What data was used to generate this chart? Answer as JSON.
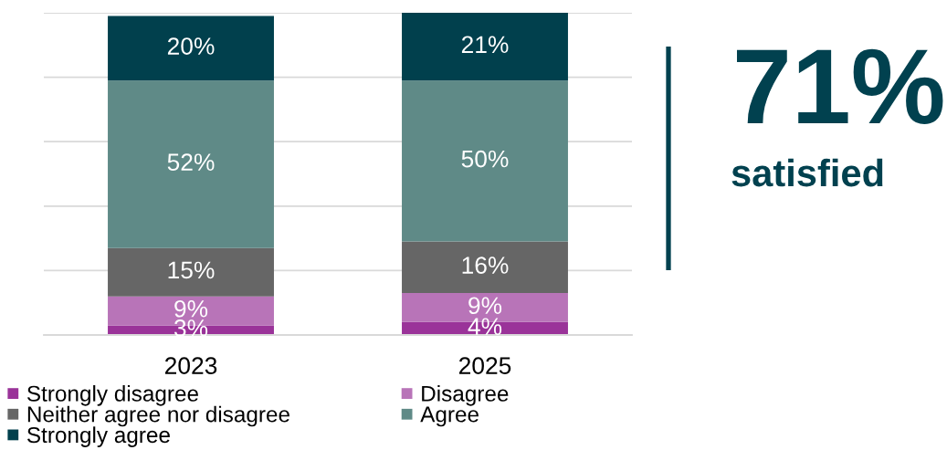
{
  "chart_data": {
    "type": "bar",
    "stacked": true,
    "categories": [
      "2023",
      "2025"
    ],
    "series": [
      {
        "name": "Strongly disagree",
        "color": "#9a3399",
        "values": [
          3,
          4
        ],
        "value_labels": [
          "3%",
          "4%"
        ]
      },
      {
        "name": "Disagree",
        "color": "#b874b8",
        "values": [
          9,
          9
        ],
        "value_labels": [
          "9%",
          "9%"
        ]
      },
      {
        "name": "Neither agree nor disagree",
        "color": "#666666",
        "values": [
          15,
          16
        ],
        "value_labels": [
          "15%",
          "16%"
        ]
      },
      {
        "name": "Agree",
        "color": "#5f8a87",
        "values": [
          52,
          50
        ],
        "value_labels": [
          "52%",
          "50%"
        ]
      },
      {
        "name": "Strongly agree",
        "color": "#01404d",
        "values": [
          20,
          21
        ],
        "value_labels": [
          "20%",
          "21%"
        ]
      }
    ],
    "ylim": [
      0,
      100
    ],
    "yticks": [
      {
        "value": 0,
        "label": null
      },
      {
        "value": 20,
        "label": null
      },
      {
        "value": 40,
        "label": null
      },
      {
        "value": 60,
        "label": null
      },
      {
        "value": 80,
        "label": null
      },
      {
        "value": 100,
        "label": null
      }
    ],
    "tick_labels": "x",
    "grid": "y",
    "legend": "bottom",
    "annotations": [
      "71%",
      "satisfied"
    ]
  }
}
